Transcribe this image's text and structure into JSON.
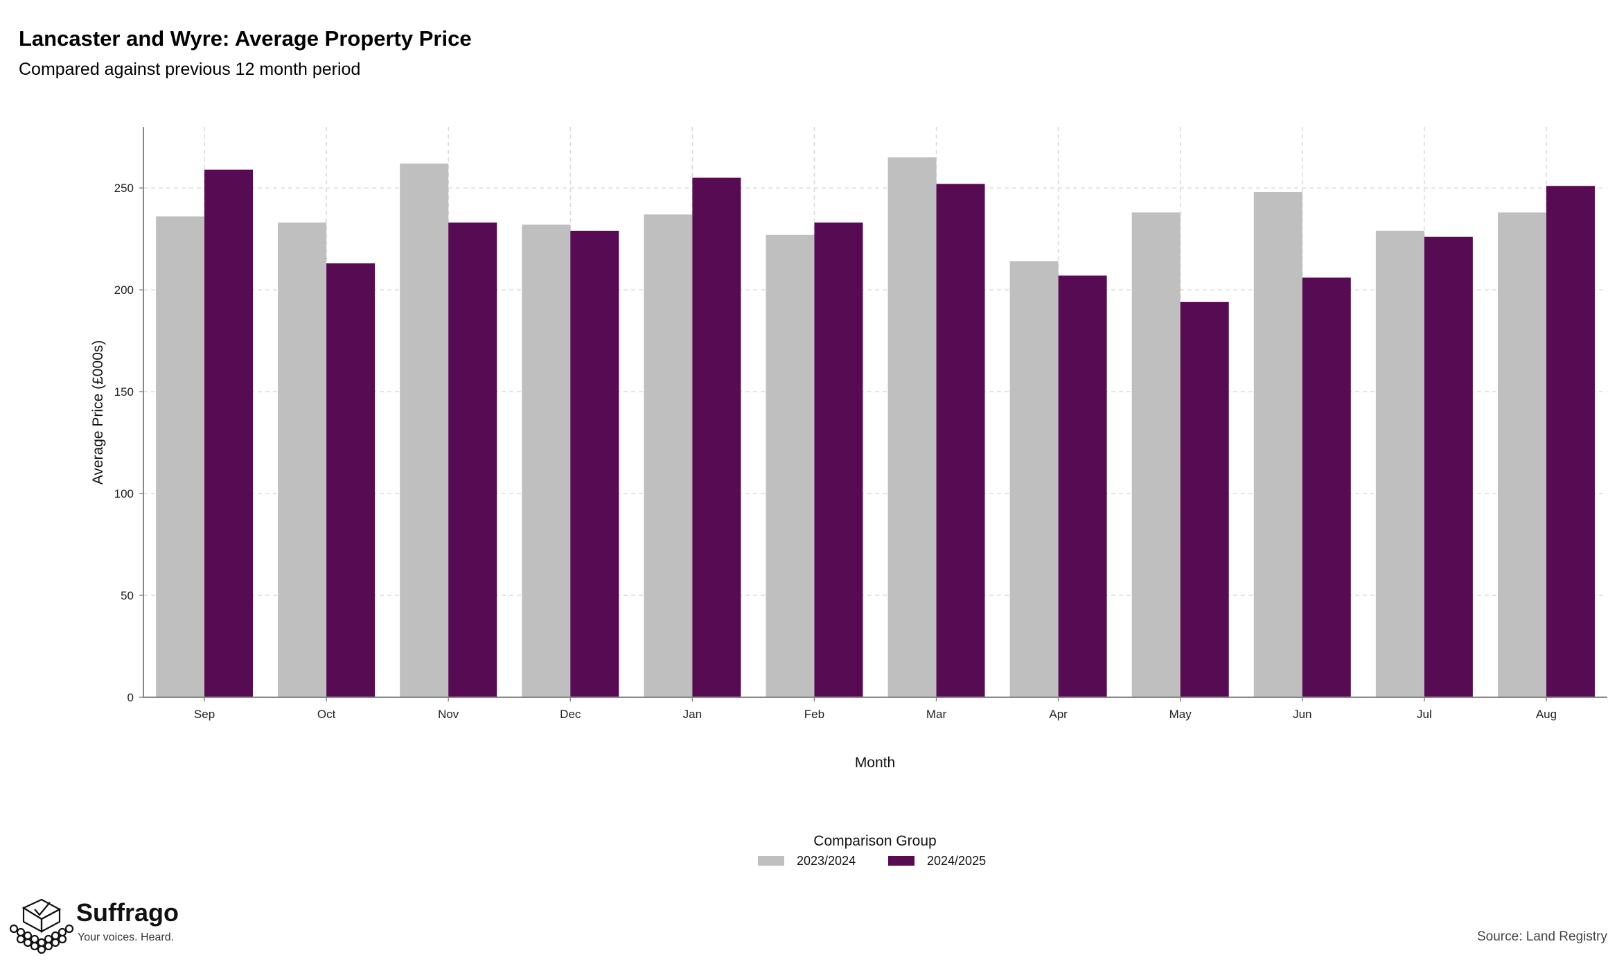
{
  "header": {
    "title": "Lancaster and Wyre: Average Property Price",
    "subtitle": "Compared against previous 12 month period"
  },
  "colors": {
    "series_a": "#bfbfbf",
    "series_b": "#560b52",
    "grid": "#d9d9d9",
    "axis": "#888888"
  },
  "chart_data": {
    "type": "bar",
    "title": "Lancaster and Wyre: Average Property Price",
    "subtitle": "Compared against previous 12 month period",
    "xlabel": "Month",
    "ylabel": "Average Price (£000s)",
    "ylim": [
      0,
      280
    ],
    "yticks": [
      0,
      50,
      100,
      150,
      200,
      250
    ],
    "categories": [
      "Sep",
      "Oct",
      "Nov",
      "Dec",
      "Jan",
      "Feb",
      "Mar",
      "Apr",
      "May",
      "Jun",
      "Jul",
      "Aug"
    ],
    "series": [
      {
        "name": "2023/2024",
        "color": "#bfbfbf",
        "values": [
          236,
          233,
          262,
          232,
          237,
          227,
          265,
          214,
          238,
          248,
          229,
          238
        ]
      },
      {
        "name": "2024/2025",
        "color": "#560b52",
        "values": [
          259,
          213,
          233,
          229,
          255,
          233,
          252,
          207,
          194,
          206,
          226,
          251
        ]
      }
    ],
    "grid": true,
    "legend": {
      "title": "Comparison Group",
      "position": "bottom-center"
    }
  },
  "branding": {
    "name": "Suffrago",
    "tagline": "Your voices. Heard."
  },
  "footer": {
    "source": "Source: Land Registry"
  }
}
